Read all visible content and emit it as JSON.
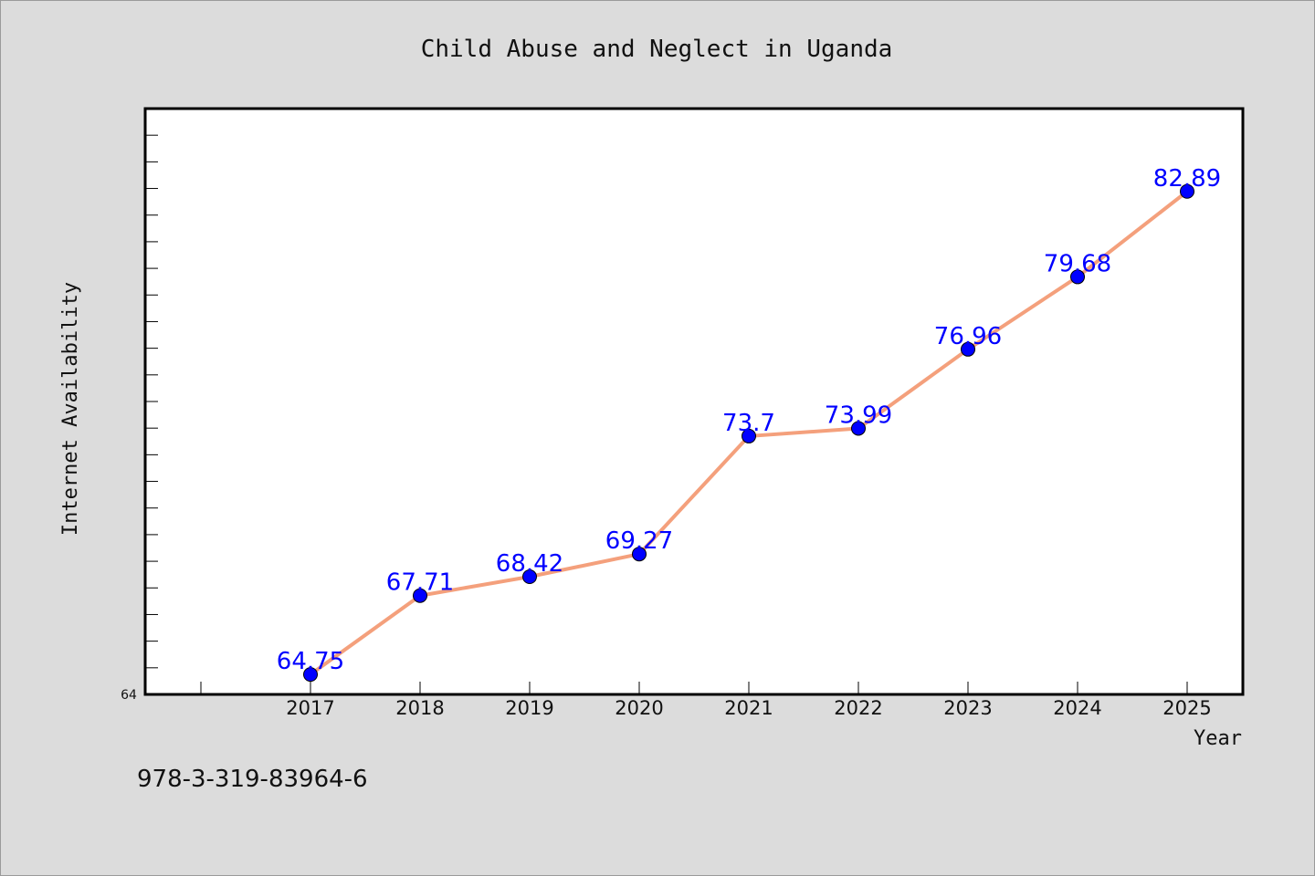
{
  "chart_data": {
    "type": "line",
    "title": "Child Abuse and Neglect in Uganda",
    "xlabel": "Year",
    "ylabel": "Internet Availability",
    "categories": [
      "2017",
      "2018",
      "2019",
      "2020",
      "2021",
      "2022",
      "2023",
      "2024",
      "2025"
    ],
    "series": [
      {
        "values": [
          64.75,
          67.71,
          68.42,
          69.27,
          73.7,
          73.99,
          76.96,
          79.68,
          82.89
        ],
        "labels": [
          "64.75",
          "67.71",
          "68.42",
          "69.27",
          "73.7",
          "73.99",
          "76.96",
          "79.68",
          "82.89"
        ]
      }
    ],
    "y_tick_labels": [
      "64"
    ],
    "ylim": [
      64,
      86
    ],
    "grid": false,
    "line_color": "#f4a07c",
    "marker_color": "#0000ff"
  },
  "footer": {
    "code": "978-3-319-83964-6"
  }
}
